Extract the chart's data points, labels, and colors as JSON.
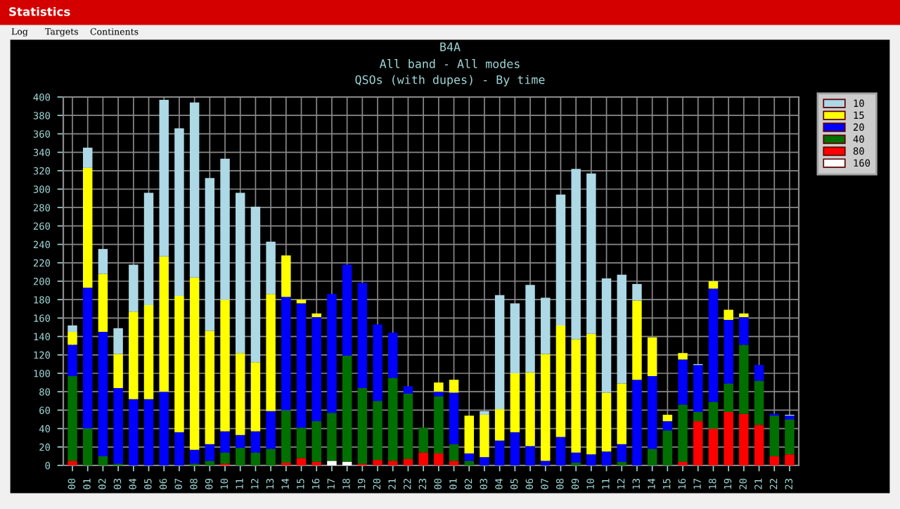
{
  "chart_data": {
    "type": "bar",
    "stacked": true,
    "title": "B4A",
    "subtitle": "All band - All modes\nQSOs (with dupes) - By time",
    "annotations": [
      "Statistics",
      "Log",
      "Targets",
      "Continents"
    ],
    "categories": [
      "00",
      "01",
      "02",
      "03",
      "04",
      "05",
      "06",
      "07",
      "08",
      "09",
      "10",
      "11",
      "12",
      "13",
      "14",
      "15",
      "16",
      "17",
      "18",
      "19",
      "20",
      "21",
      "22",
      "23",
      "00",
      "01",
      "02",
      "03",
      "04",
      "05",
      "06",
      "07",
      "08",
      "09",
      "10",
      "11",
      "12",
      "13",
      "14",
      "15",
      "16",
      "17",
      "18",
      "19",
      "20",
      "21",
      "22",
      "23"
    ],
    "series": [
      {
        "name": "160",
        "color": "#ffffff",
        "values": [
          0,
          0,
          0,
          0,
          0,
          0,
          0,
          0,
          0,
          0,
          0,
          0,
          0,
          0,
          0,
          0,
          0,
          5,
          4,
          0,
          0,
          0,
          0,
          0,
          0,
          0,
          0,
          0,
          0,
          0,
          0,
          0,
          0,
          0,
          0,
          0,
          0,
          0,
          0,
          0,
          0,
          0,
          0,
          0,
          0,
          0,
          0,
          0
        ]
      },
      {
        "name": "80",
        "color": "#ff0000",
        "values": [
          5,
          0,
          0,
          0,
          0,
          0,
          0,
          0,
          0,
          0,
          2,
          0,
          0,
          0,
          3,
          8,
          4,
          0,
          0,
          2,
          6,
          5,
          7,
          14,
          13,
          5,
          0,
          0,
          0,
          0,
          0,
          0,
          0,
          0,
          0,
          0,
          0,
          0,
          0,
          0,
          4,
          48,
          40,
          58,
          56,
          44,
          10,
          12
        ]
      },
      {
        "name": "40",
        "color": "#007000",
        "values": [
          92,
          40,
          10,
          2,
          0,
          0,
          0,
          0,
          2,
          5,
          12,
          19,
          14,
          18,
          57,
          33,
          44,
          52,
          115,
          82,
          64,
          90,
          71,
          27,
          62,
          18,
          5,
          0,
          0,
          0,
          0,
          0,
          0,
          3,
          0,
          0,
          4,
          0,
          18,
          38,
          62,
          10,
          29,
          31,
          75,
          48,
          44,
          38
        ]
      },
      {
        "name": "20",
        "color": "#0000ff",
        "values": [
          34,
          153,
          135,
          82,
          72,
          72,
          80,
          36,
          15,
          18,
          23,
          14,
          23,
          41,
          123,
          135,
          113,
          129,
          99,
          114,
          83,
          49,
          8,
          0,
          5,
          56,
          8,
          9,
          27,
          36,
          21,
          5,
          31,
          11,
          12,
          15,
          19,
          93,
          79,
          10,
          49,
          51,
          123,
          69,
          30,
          17,
          2,
          4
        ]
      },
      {
        "name": "15",
        "color": "#ffff00",
        "values": [
          14,
          130,
          63,
          37,
          95,
          102,
          147,
          148,
          187,
          123,
          143,
          89,
          75,
          127,
          45,
          4,
          4,
          0,
          0,
          0,
          0,
          0,
          0,
          0,
          10,
          14,
          41,
          46,
          34,
          64,
          80,
          116,
          121,
          123,
          131,
          64,
          66,
          86,
          42,
          7,
          7,
          0,
          8,
          11,
          4,
          0,
          0,
          0
        ]
      },
      {
        "name": "10",
        "color": "#add8e6",
        "values": [
          7,
          22,
          27,
          28,
          51,
          122,
          170,
          182,
          190,
          166,
          153,
          174,
          169,
          57,
          0,
          0,
          0,
          0,
          0,
          0,
          0,
          0,
          0,
          0,
          0,
          0,
          0,
          4,
          124,
          76,
          95,
          61,
          142,
          185,
          174,
          124,
          118,
          18,
          0,
          0,
          0,
          1,
          0,
          0,
          0,
          0,
          0,
          1
        ]
      }
    ],
    "ylim": [
      0,
      400
    ],
    "yticks": [
      0,
      20,
      40,
      60,
      80,
      100,
      120,
      140,
      160,
      180,
      200,
      220,
      240,
      260,
      280,
      300,
      320,
      340,
      360,
      380,
      400
    ],
    "grid": true,
    "legend": "top right"
  }
}
